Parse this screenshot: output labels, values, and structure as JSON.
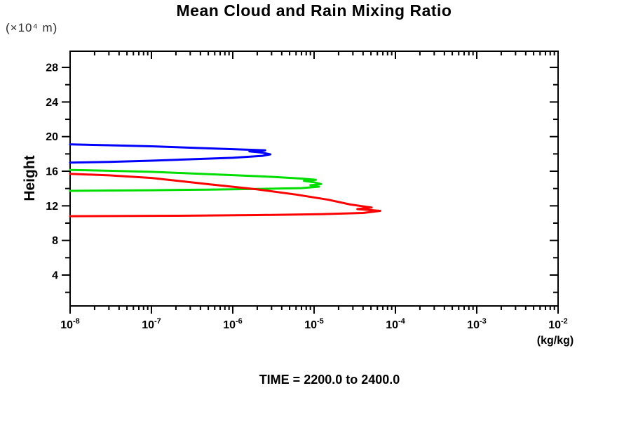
{
  "chart_data": {
    "type": "line",
    "title": "Mean Cloud and Rain Mixing Ratio",
    "y_unit_label": "(×10⁴ m)",
    "ylabel": "Height",
    "xlabel": "(kg/kg)",
    "caption": "TIME = 2200.0 to 2400.0",
    "x_scale": "log",
    "x_exponent_min": -8,
    "x_exponent_max": -2,
    "x_tick_base": "10",
    "ylim": [
      0.43,
      29.87
    ],
    "y_major_ticks": [
      4,
      8,
      12,
      16,
      20,
      24,
      28
    ],
    "y_minor_ticks": [
      2,
      6,
      10,
      14,
      18,
      22,
      26
    ],
    "grid": false,
    "legend": "none",
    "axis_color": "#000000",
    "series": [
      {
        "name": "blue-profile",
        "color": "#0000ff",
        "points": [
          [
            1e-08,
            19.1
          ],
          [
            3e-08,
            19.0
          ],
          [
            1e-07,
            18.88
          ],
          [
            3e-07,
            18.72
          ],
          [
            1e-06,
            18.55
          ],
          [
            1.8e-06,
            18.47
          ],
          [
            2.5e-06,
            18.42
          ],
          [
            1.6e-06,
            18.3
          ],
          [
            2.3e-06,
            18.15
          ],
          [
            2.9e-06,
            17.95
          ],
          [
            2.3e-06,
            17.78
          ],
          [
            1e-06,
            17.55
          ],
          [
            3e-07,
            17.38
          ],
          [
            1e-07,
            17.22
          ],
          [
            3e-08,
            17.08
          ],
          [
            1e-08,
            17.0
          ]
        ]
      },
      {
        "name": "green-profile",
        "color": "#00dd00",
        "points": [
          [
            1e-08,
            16.15
          ],
          [
            3e-08,
            16.05
          ],
          [
            1e-07,
            15.93
          ],
          [
            3e-07,
            15.75
          ],
          [
            1e-06,
            15.55
          ],
          [
            3e-06,
            15.35
          ],
          [
            7e-06,
            15.15
          ],
          [
            1.05e-05,
            15.0
          ],
          [
            7.5e-06,
            14.88
          ],
          [
            1e-05,
            14.72
          ],
          [
            1.22e-05,
            14.52
          ],
          [
            9e-06,
            14.38
          ],
          [
            1.15e-05,
            14.22
          ],
          [
            7e-06,
            14.05
          ],
          [
            2e-06,
            13.95
          ],
          [
            5e-07,
            13.88
          ],
          [
            1e-07,
            13.8
          ],
          [
            1e-08,
            13.73
          ]
        ]
      },
      {
        "name": "red-profile",
        "color": "#ff0000",
        "points": [
          [
            1e-08,
            15.7
          ],
          [
            3e-08,
            15.52
          ],
          [
            1e-07,
            15.22
          ],
          [
            5e-07,
            14.5
          ],
          [
            2e-06,
            13.9
          ],
          [
            6e-06,
            13.3
          ],
          [
            1.5e-05,
            12.7
          ],
          [
            2.8e-05,
            12.15
          ],
          [
            5.1e-05,
            11.8
          ],
          [
            3.4e-05,
            11.62
          ],
          [
            6.5e-05,
            11.42
          ],
          [
            4e-05,
            11.18
          ],
          [
            1.2e-05,
            11.03
          ],
          [
            2e-06,
            10.93
          ],
          [
            2e-07,
            10.85
          ],
          [
            1e-08,
            10.8
          ]
        ]
      }
    ]
  }
}
